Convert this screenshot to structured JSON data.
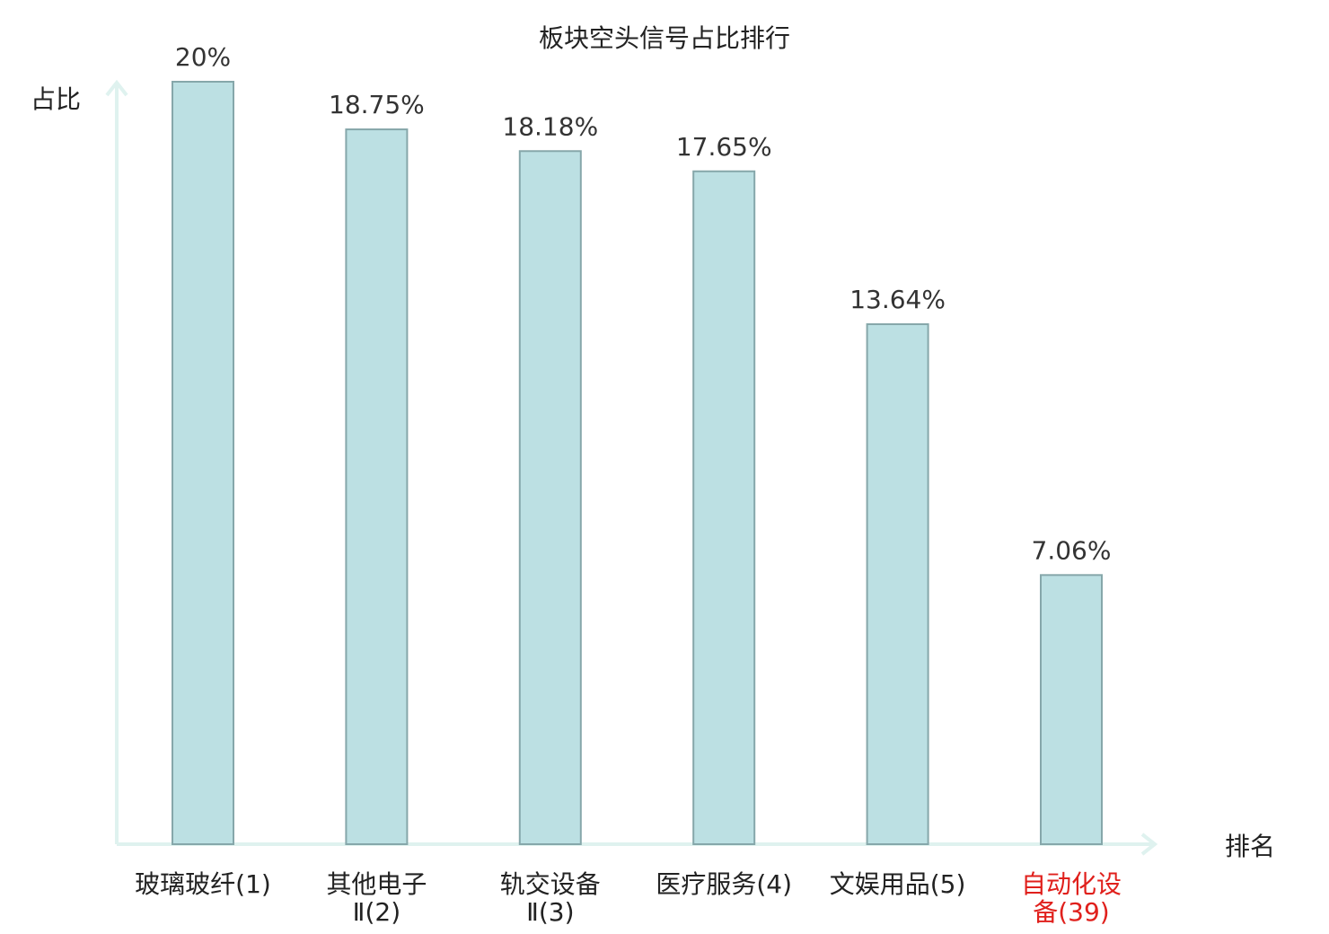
{
  "chart_data": {
    "type": "bar",
    "title": "板块空头信号占比排行",
    "ylabel": "占比",
    "xlabel": "排名",
    "ylim": [
      0,
      20
    ],
    "grid": false,
    "categories": [
      {
        "lines": [
          "玻璃玻纤(1)"
        ],
        "highlight": false
      },
      {
        "lines": [
          "其他电子",
          "Ⅱ(2)"
        ],
        "highlight": false
      },
      {
        "lines": [
          "轨交设备",
          "Ⅱ(3)"
        ],
        "highlight": false
      },
      {
        "lines": [
          "医疗服务(4)"
        ],
        "highlight": false
      },
      {
        "lines": [
          "文娱用品(5)"
        ],
        "highlight": false
      },
      {
        "lines": [
          "自动化设",
          "备(39)"
        ],
        "highlight": true
      }
    ],
    "values": [
      20,
      18.75,
      18.18,
      17.65,
      13.64,
      7.06
    ],
    "value_labels": [
      "20%",
      "18.75%",
      "18.18%",
      "17.65%",
      "13.64%",
      "7.06%"
    ],
    "colors": {
      "bar_fill": "#bce0e3",
      "bar_stroke": "#86a7aa",
      "axis": "#dff2ef",
      "highlight_text": "#e0201c"
    }
  }
}
